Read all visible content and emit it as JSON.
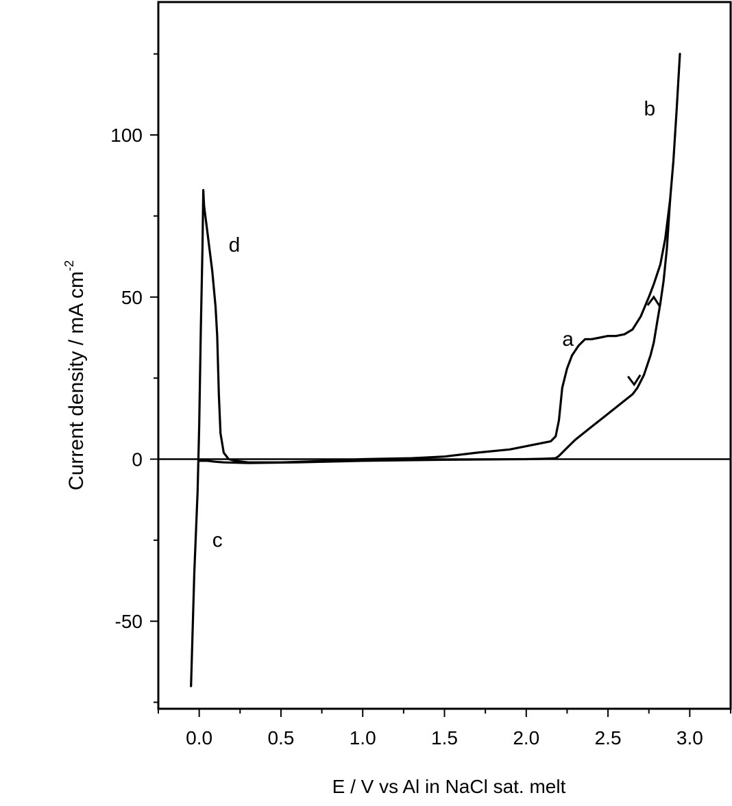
{
  "chart_data": {
    "type": "line",
    "xlabel": "E / V vs Al in NaCl sat. melt",
    "ylabel": "Current density / mA cm",
    "ylabel_superscript": "-2",
    "xlim": [
      -0.25,
      3.25
    ],
    "ylim": [
      -77,
      141
    ],
    "x_ticks": [
      0.0,
      0.5,
      1.0,
      1.5,
      2.0,
      2.5,
      3.0
    ],
    "x_tick_labels": [
      "0.0",
      "0.5",
      "1.0",
      "1.5",
      "2.0",
      "2.5",
      "3.0"
    ],
    "y_ticks": [
      -50,
      0,
      50,
      100
    ],
    "y_tick_labels": [
      "-50",
      "0",
      "50",
      "100"
    ],
    "grid": false,
    "zero_line": true,
    "series": [
      {
        "x": [
          -0.05,
          -0.03,
          -0.01,
          0.0,
          0.01,
          0.02,
          0.025,
          0.03,
          0.05,
          0.08,
          0.1,
          0.11,
          0.12,
          0.13,
          0.15,
          0.18,
          0.22,
          0.3,
          0.5,
          0.8,
          1.0,
          1.3,
          1.5,
          1.7,
          1.9,
          2.0,
          2.05,
          2.1,
          2.15,
          2.18,
          2.2,
          2.22,
          2.25,
          2.28,
          2.32,
          2.36,
          2.4,
          2.45,
          2.5,
          2.55,
          2.6,
          2.65,
          2.7,
          2.75,
          2.78,
          2.82,
          2.85,
          2.88,
          2.9,
          2.92,
          2.94
        ],
        "y": [
          -70,
          -35,
          -10,
          10,
          40,
          65,
          83,
          78,
          70,
          58,
          47,
          38,
          20,
          8,
          2,
          0,
          -0.5,
          -1,
          -1,
          -0.5,
          0,
          0.3,
          0.8,
          2,
          3,
          4,
          4.5,
          5,
          5.5,
          7,
          12,
          22,
          28,
          32,
          35,
          37,
          37,
          37.5,
          38,
          38,
          38.5,
          40,
          44,
          50,
          54,
          60,
          68,
          80,
          92,
          108,
          125
        ]
      },
      {
        "x": [
          2.88,
          2.86,
          2.84,
          2.82,
          2.8,
          2.78,
          2.76,
          2.74,
          2.72,
          2.7,
          2.68,
          2.65,
          2.6,
          2.55,
          2.5,
          2.45,
          2.4,
          2.35,
          2.3,
          2.25,
          2.22,
          2.2,
          2.18,
          2.15,
          2.1,
          2.0,
          1.5,
          1.0,
          0.6,
          0.3,
          0.15,
          0.1,
          0.05,
          0.0
        ],
        "y": [
          80,
          65,
          55,
          48,
          42,
          36,
          32,
          29,
          26,
          24,
          22,
          20,
          18,
          16,
          14,
          12,
          10,
          8,
          6,
          3.5,
          2,
          1,
          0.3,
          0.2,
          0.1,
          0,
          -0.2,
          -0.5,
          -1,
          -1.2,
          -1,
          -0.8,
          -0.5,
          -0.5
        ]
      }
    ],
    "curve_labels": [
      {
        "text": "a",
        "x": 2.22,
        "y": 35
      },
      {
        "text": "b",
        "x": 2.72,
        "y": 106
      },
      {
        "text": "c",
        "x": 0.08,
        "y": -27
      },
      {
        "text": "d",
        "x": 0.18,
        "y": 64
      }
    ],
    "arrows": [
      {
        "x": 2.78,
        "y": 50,
        "direction": "up"
      },
      {
        "x": 2.66,
        "y": 23,
        "direction": "down"
      }
    ]
  }
}
